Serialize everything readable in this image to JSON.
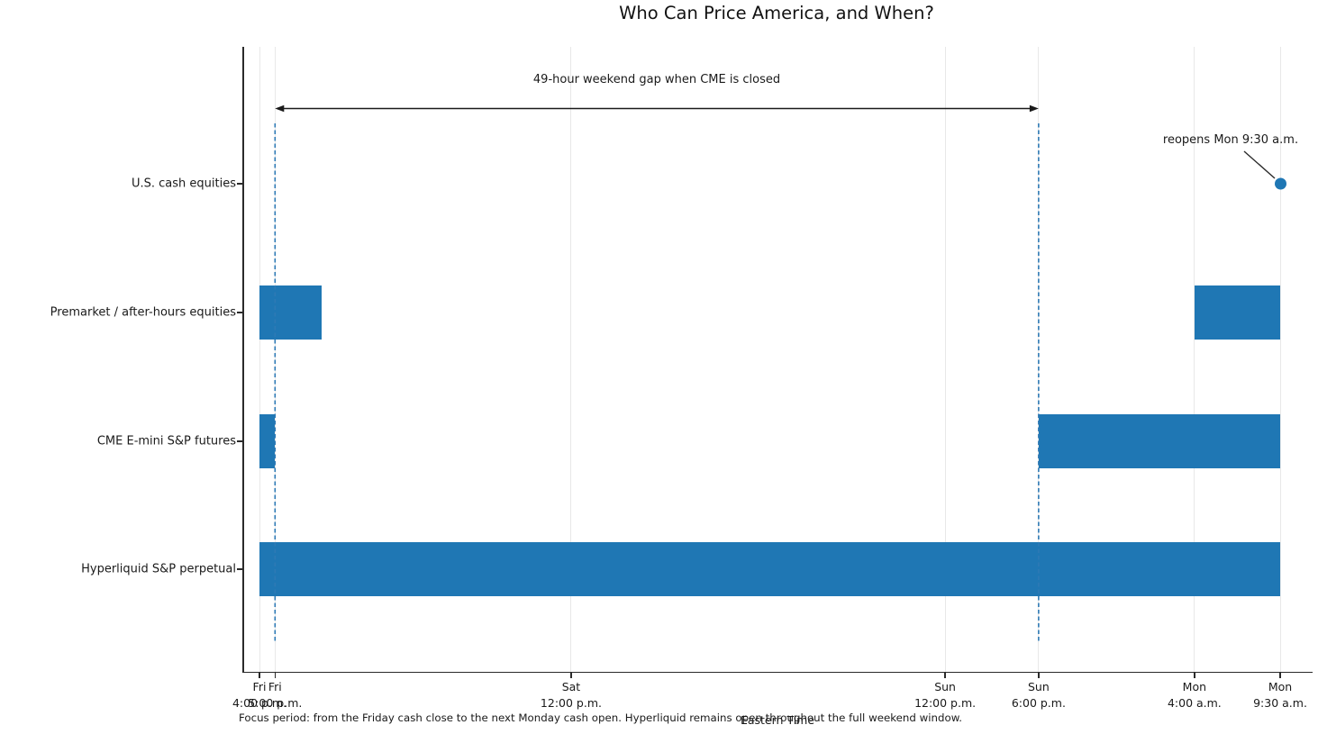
{
  "figure": {
    "background": "#ffffff"
  },
  "chart_data": {
    "type": "bar",
    "subtype": "horizontal-timeline-gantt",
    "title": "Who Can Price America, and When?",
    "xlabel": "Eastern Time",
    "x_unit": "hours since Friday 4:00 p.m. ET",
    "x_range_hours": [
      0,
      65.5
    ],
    "grid": "vertical-gridlines-on",
    "legend": "none",
    "bar_color": "#1f77b4",
    "marker_color": "#1f77b4",
    "dashed_guide_color": "#2e7ab5",
    "grid_color": "#e8e8e8",
    "xticks": [
      {
        "hours": 0,
        "day": "Fri",
        "time": "4:00 p.m."
      },
      {
        "hours": 1,
        "day": "Fri",
        "time": "5:00 p.m."
      },
      {
        "hours": 20,
        "day": "Sat",
        "time": "12:00 p.m."
      },
      {
        "hours": 44,
        "day": "Sun",
        "time": "12:00 p.m."
      },
      {
        "hours": 50,
        "day": "Sun",
        "time": "6:00 p.m."
      },
      {
        "hours": 60,
        "day": "Mon",
        "time": "4:00 a.m."
      },
      {
        "hours": 65.5,
        "day": "Mon",
        "time": "9:30 a.m."
      }
    ],
    "rows": [
      {
        "label": "U.S. cash equities",
        "open_intervals_hours": [],
        "marker_hours": 65.5
      },
      {
        "label": "Premarket / after-hours equities",
        "open_intervals_hours": [
          [
            0,
            4
          ],
          [
            60,
            65.5
          ]
        ]
      },
      {
        "label": "CME E-mini S&P futures",
        "open_intervals_hours": [
          [
            0,
            1
          ],
          [
            50,
            65.5
          ]
        ]
      },
      {
        "label": "Hyperliquid S&P perpetual",
        "open_intervals_hours": [
          [
            0,
            65.5
          ]
        ]
      }
    ],
    "dashed_vlines_hours": [
      1,
      50
    ],
    "annotations": {
      "gap": {
        "text": "49-hour weekend gap when CME is closed",
        "from_hours": 1,
        "to_hours": 50
      },
      "reopen": {
        "text": "reopens Mon 9:30 a.m.",
        "points_to_hours": 65.5,
        "points_to_row": "U.S. cash equities"
      }
    },
    "caption": "Focus period: from the Friday cash close to the next Monday cash open. Hyperliquid remains open throughout the full weekend window."
  }
}
